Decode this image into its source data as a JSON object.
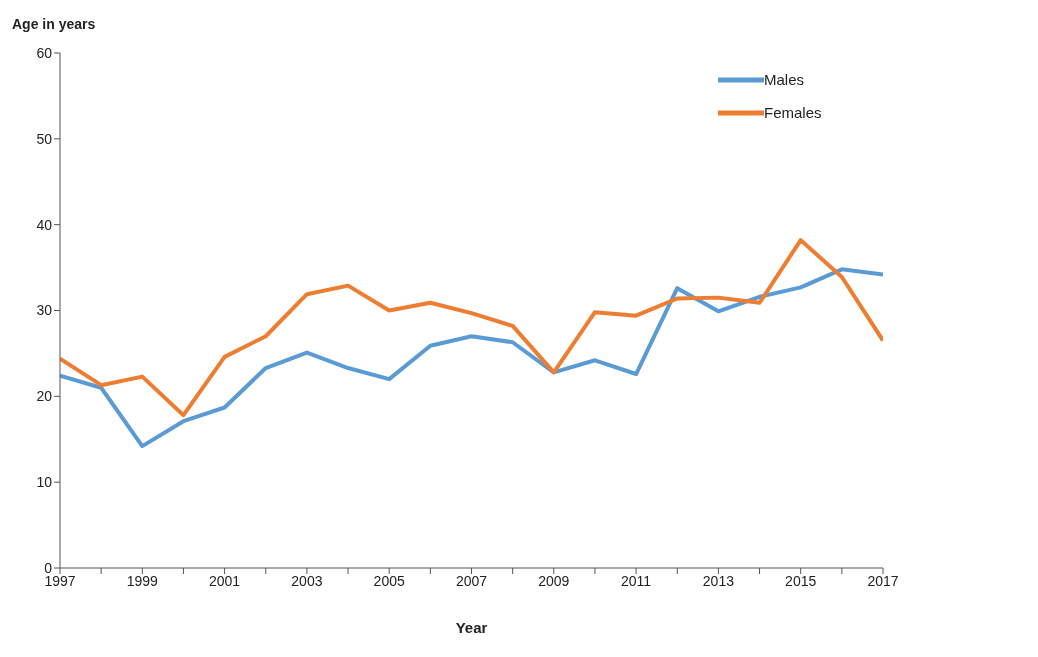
{
  "chart_data": {
    "type": "line",
    "ylabel": "Age in years",
    "xlabel": "Year",
    "x": [
      1997,
      1998,
      1999,
      2000,
      2001,
      2002,
      2003,
      2004,
      2005,
      2006,
      2007,
      2008,
      2009,
      2010,
      2011,
      2012,
      2013,
      2014,
      2015,
      2016,
      2017
    ],
    "series": [
      {
        "name": "Males",
        "color": "#5b9bd5",
        "values": [
          22.4,
          21.0,
          14.2,
          17.1,
          18.7,
          23.3,
          25.1,
          23.3,
          22.0,
          25.9,
          27.0,
          26.3,
          22.8,
          24.2,
          22.6,
          32.6,
          29.9,
          31.6,
          32.7,
          34.8,
          34.2
        ]
      },
      {
        "name": "Females",
        "color": "#ed7d31",
        "values": [
          24.4,
          21.3,
          22.3,
          17.8,
          24.6,
          27.0,
          31.9,
          32.9,
          30.0,
          30.9,
          29.7,
          28.2,
          22.8,
          29.8,
          29.4,
          31.4,
          31.5,
          30.9,
          38.2,
          33.9,
          26.5
        ]
      }
    ],
    "xlim": [
      1997,
      2017
    ],
    "xticks": [
      1997,
      {
        "value": 1998,
        "label": null
      },
      1999,
      {
        "value": 2000,
        "label": null
      },
      2001,
      {
        "value": 2002,
        "label": null
      },
      2003,
      {
        "value": 2004,
        "label": null
      },
      2005,
      {
        "value": 2006,
        "label": null
      },
      2007,
      {
        "value": 2008,
        "label": null
      },
      2009,
      {
        "value": 2010,
        "label": null
      },
      2011,
      {
        "value": 2012,
        "label": null
      },
      2013,
      {
        "value": 2014,
        "label": null
      },
      2015,
      {
        "value": 2016,
        "label": null
      },
      2017
    ],
    "ylim": [
      0,
      60
    ],
    "yticks": [
      0,
      10,
      20,
      30,
      40,
      50,
      60
    ],
    "grid": false,
    "legend": "top right",
    "marker": "none",
    "line_style": "solid"
  }
}
